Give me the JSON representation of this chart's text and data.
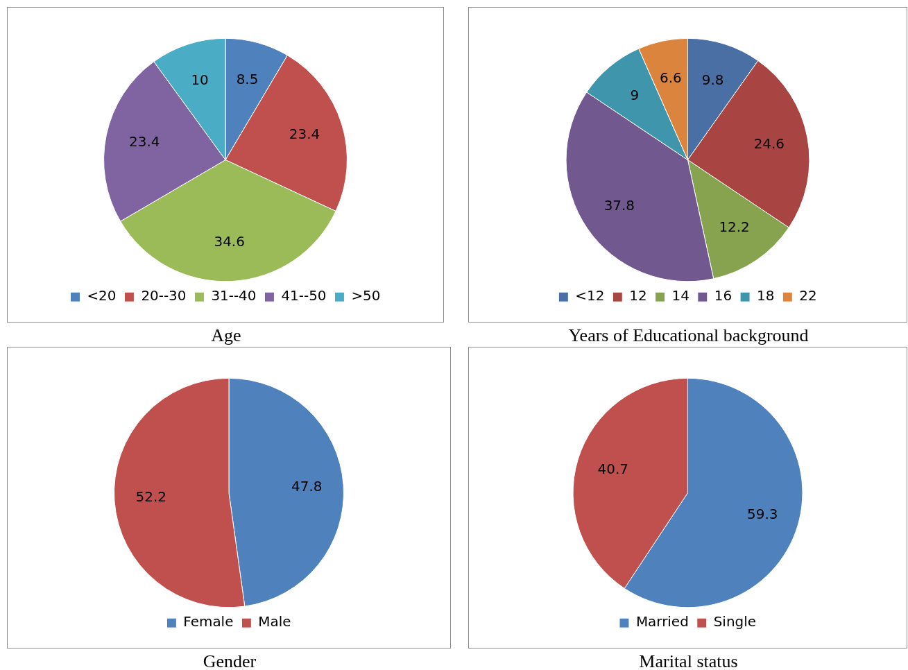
{
  "chart_data": [
    {
      "type": "pie",
      "title": "Age",
      "categories": [
        "<20",
        "20--30",
        "31--40",
        "41--50",
        ">50"
      ],
      "values": [
        8.5,
        23.4,
        34.6,
        23.4,
        10
      ],
      "colors": [
        "#4f81bd",
        "#c0504d",
        "#9bbb59",
        "#8064a2",
        "#4bacc6"
      ],
      "data_labels": true,
      "legend": "bottom"
    },
    {
      "type": "pie",
      "title": "Years of Educational background",
      "categories": [
        "<12",
        "12",
        "14",
        "16",
        "18",
        "22"
      ],
      "values": [
        9.8,
        24.6,
        12.2,
        37.8,
        9,
        6.6
      ],
      "colors": [
        "#4a6fa5",
        "#a84442",
        "#87a34f",
        "#71588f",
        "#3f96ac",
        "#db843d"
      ],
      "data_labels": true,
      "legend": "bottom"
    },
    {
      "type": "pie",
      "title": "Gender",
      "categories": [
        "Female",
        "Male"
      ],
      "values": [
        47.8,
        52.2
      ],
      "colors": [
        "#4f81bd",
        "#c0504d"
      ],
      "data_labels": true,
      "legend": "bottom"
    },
    {
      "type": "pie",
      "title": "Marital status",
      "categories": [
        "Married",
        "Single"
      ],
      "values": [
        59.3,
        40.7
      ],
      "colors": [
        "#4f81bd",
        "#c0504d"
      ],
      "data_labels": true,
      "legend": "bottom"
    }
  ]
}
